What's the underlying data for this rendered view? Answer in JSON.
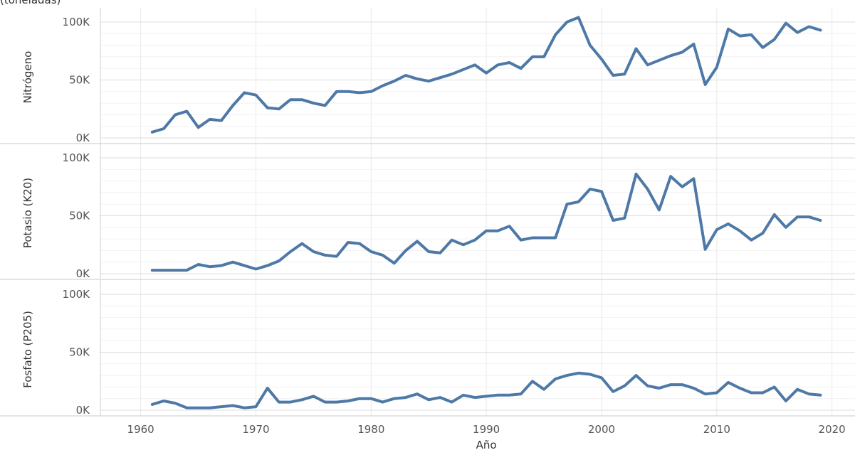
{
  "chart_data": {
    "type": "line",
    "title": "(toneladas)",
    "xlabel": "Año",
    "xlim": [
      1956.5,
      2022
    ],
    "x_ticks": [
      "1960",
      "1970",
      "1980",
      "1990",
      "2000",
      "2010",
      "2020"
    ],
    "x_tick_values": [
      1960,
      1970,
      1980,
      1990,
      2000,
      2010,
      2020
    ],
    "ylim": [
      0,
      105000
    ],
    "y_ticks": [
      "0K",
      "50K",
      "100K"
    ],
    "y_tick_values": [
      0,
      50000,
      100000
    ],
    "grid": true,
    "line_color": "#4e79a7",
    "x": [
      1961,
      1962,
      1963,
      1964,
      1965,
      1966,
      1967,
      1968,
      1969,
      1970,
      1971,
      1972,
      1973,
      1974,
      1975,
      1976,
      1977,
      1978,
      1979,
      1980,
      1981,
      1982,
      1983,
      1984,
      1985,
      1986,
      1987,
      1988,
      1989,
      1990,
      1991,
      1992,
      1993,
      1994,
      1995,
      1996,
      1997,
      1998,
      1999,
      2000,
      2001,
      2002,
      2003,
      2004,
      2005,
      2006,
      2007,
      2008,
      2009,
      2010,
      2011,
      2012,
      2013,
      2014,
      2015,
      2016,
      2017,
      2018,
      2019
    ],
    "series": [
      {
        "name": "Nitrógeno",
        "values": [
          5000,
          8000,
          20000,
          23000,
          9000,
          16000,
          15000,
          28000,
          39000,
          37000,
          26000,
          25000,
          33000,
          33000,
          30000,
          28000,
          40000,
          40000,
          39000,
          40000,
          45000,
          49000,
          54000,
          51000,
          49000,
          52000,
          55000,
          59000,
          63000,
          56000,
          63000,
          65000,
          60000,
          70000,
          70000,
          89000,
          100000,
          104000,
          80000,
          68000,
          54000,
          55000,
          77000,
          63000,
          67000,
          71000,
          74000,
          81000,
          46000,
          61000,
          94000,
          88000,
          89000,
          78000,
          85000,
          99000,
          91000,
          96000,
          93000
        ]
      },
      {
        "name": "Potasio (K20)",
        "values": [
          3000,
          3000,
          3000,
          3000,
          8000,
          6000,
          7000,
          10000,
          7000,
          4000,
          7000,
          11000,
          19000,
          26000,
          19000,
          16000,
          15000,
          27000,
          26000,
          19000,
          16000,
          9000,
          20000,
          28000,
          19000,
          18000,
          29000,
          25000,
          29000,
          37000,
          37000,
          41000,
          29000,
          31000,
          31000,
          31000,
          60000,
          62000,
          73000,
          71000,
          46000,
          48000,
          86000,
          73000,
          55000,
          84000,
          75000,
          82000,
          21000,
          38000,
          43000,
          37000,
          29000,
          35000,
          51000,
          40000,
          49000,
          49000,
          46000
        ]
      },
      {
        "name": "Fosfato (P205)",
        "values": [
          5000,
          8000,
          6000,
          2000,
          2000,
          2000,
          3000,
          4000,
          2000,
          3000,
          19000,
          7000,
          7000,
          9000,
          12000,
          7000,
          7000,
          8000,
          10000,
          10000,
          7000,
          10000,
          11000,
          14000,
          9000,
          11000,
          7000,
          13000,
          11000,
          12000,
          13000,
          13000,
          14000,
          25000,
          18000,
          27000,
          30000,
          32000,
          31000,
          28000,
          16000,
          21000,
          30000,
          21000,
          19000,
          22000,
          22000,
          19000,
          14000,
          15000,
          24000,
          19000,
          15000,
          15000,
          20000,
          8000,
          18000,
          14000,
          13000
        ]
      }
    ]
  }
}
